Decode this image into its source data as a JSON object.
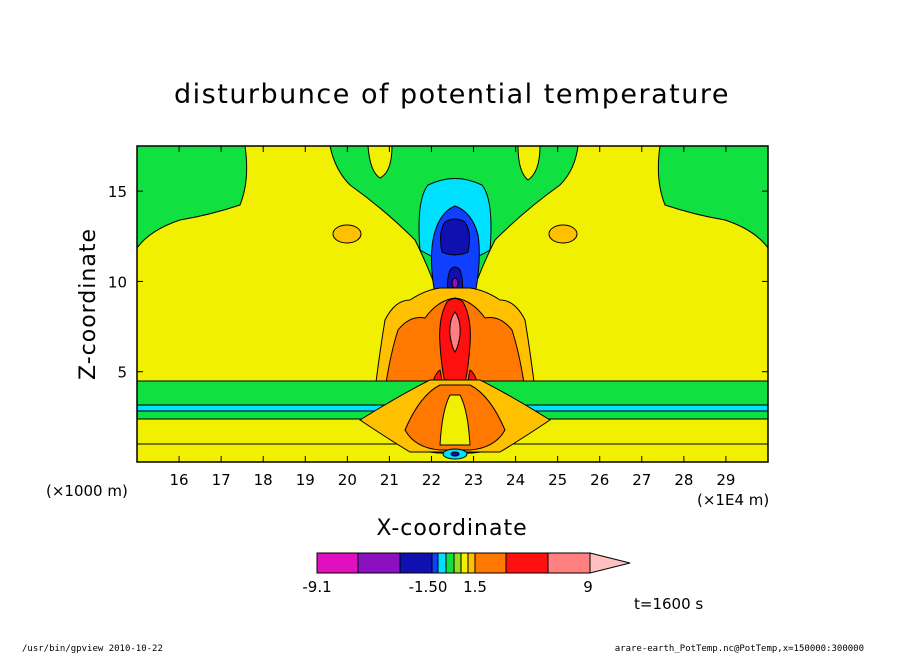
{
  "chart_data": {
    "type": "heatmap",
    "title": "disturbunce of potential temperature",
    "xlabel": "X-coordinate",
    "ylabel": "Z-coordinate",
    "x_unit": "(×1E4 m)",
    "z_unit": "(×1000 m)",
    "xlim": [
      15.0,
      30.0
    ],
    "ylim": [
      0.0,
      17.5
    ],
    "x_ticks": [
      16,
      17,
      18,
      19,
      20,
      21,
      22,
      23,
      24,
      25,
      26,
      27,
      28,
      29
    ],
    "y_ticks": [
      5,
      10,
      15
    ],
    "legend": {
      "levels_labeled": [
        "-9.1",
        "-1.50",
        "1.5",
        "9"
      ],
      "colors": [
        "#e00fc0",
        "#8b10c0",
        "#1010b0",
        "#1040ff",
        "#00e0ff",
        "#10e040",
        "#90e020",
        "#f0f000",
        "#ffc000",
        "#ff7800",
        "#ff1010",
        "#ff8080",
        "#ffc0c0"
      ]
    },
    "time_label": "t=1600 s"
  },
  "footer": {
    "left": "/usr/bin/gpview  2010-10-22",
    "right": "arare-earth_PotTemp.nc@PotTemp,x=150000:300000"
  }
}
